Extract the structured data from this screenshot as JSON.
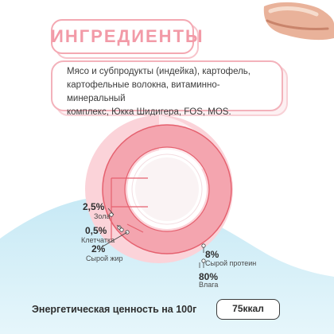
{
  "title": "ИНГРЕДИЕНТЫ",
  "ingredients": {
    "line1": "Мясо и субпродукты (индейка), картофель,",
    "line2": "картофельные волокна, витаминно-минеральный",
    "line3": "комплекс, Юкка Шидигера, FOS, MOS."
  },
  "chart_data": {
    "type": "pie",
    "title": "",
    "slices": [
      {
        "value": "2,5%",
        "pct": 2.5,
        "label": "Зола"
      },
      {
        "value": "0,5%",
        "pct": 0.5,
        "label": "Клетчатка"
      },
      {
        "value": "2%",
        "pct": 2,
        "label": "Сырой жир"
      },
      {
        "value": "8%",
        "pct": 8,
        "label": "Сырой протеин"
      },
      {
        "value": "80%",
        "pct": 80,
        "label": "Влага"
      }
    ],
    "colors": {
      "ring": "#f4a5af",
      "ring_stroke": "#e5616f",
      "disc": "#ffffff",
      "accent": "#f29aa7",
      "bg_pale": "#ffe6ea"
    }
  },
  "energy": {
    "label": "Энергетическая ценность на 100г",
    "value": "75ккал"
  }
}
